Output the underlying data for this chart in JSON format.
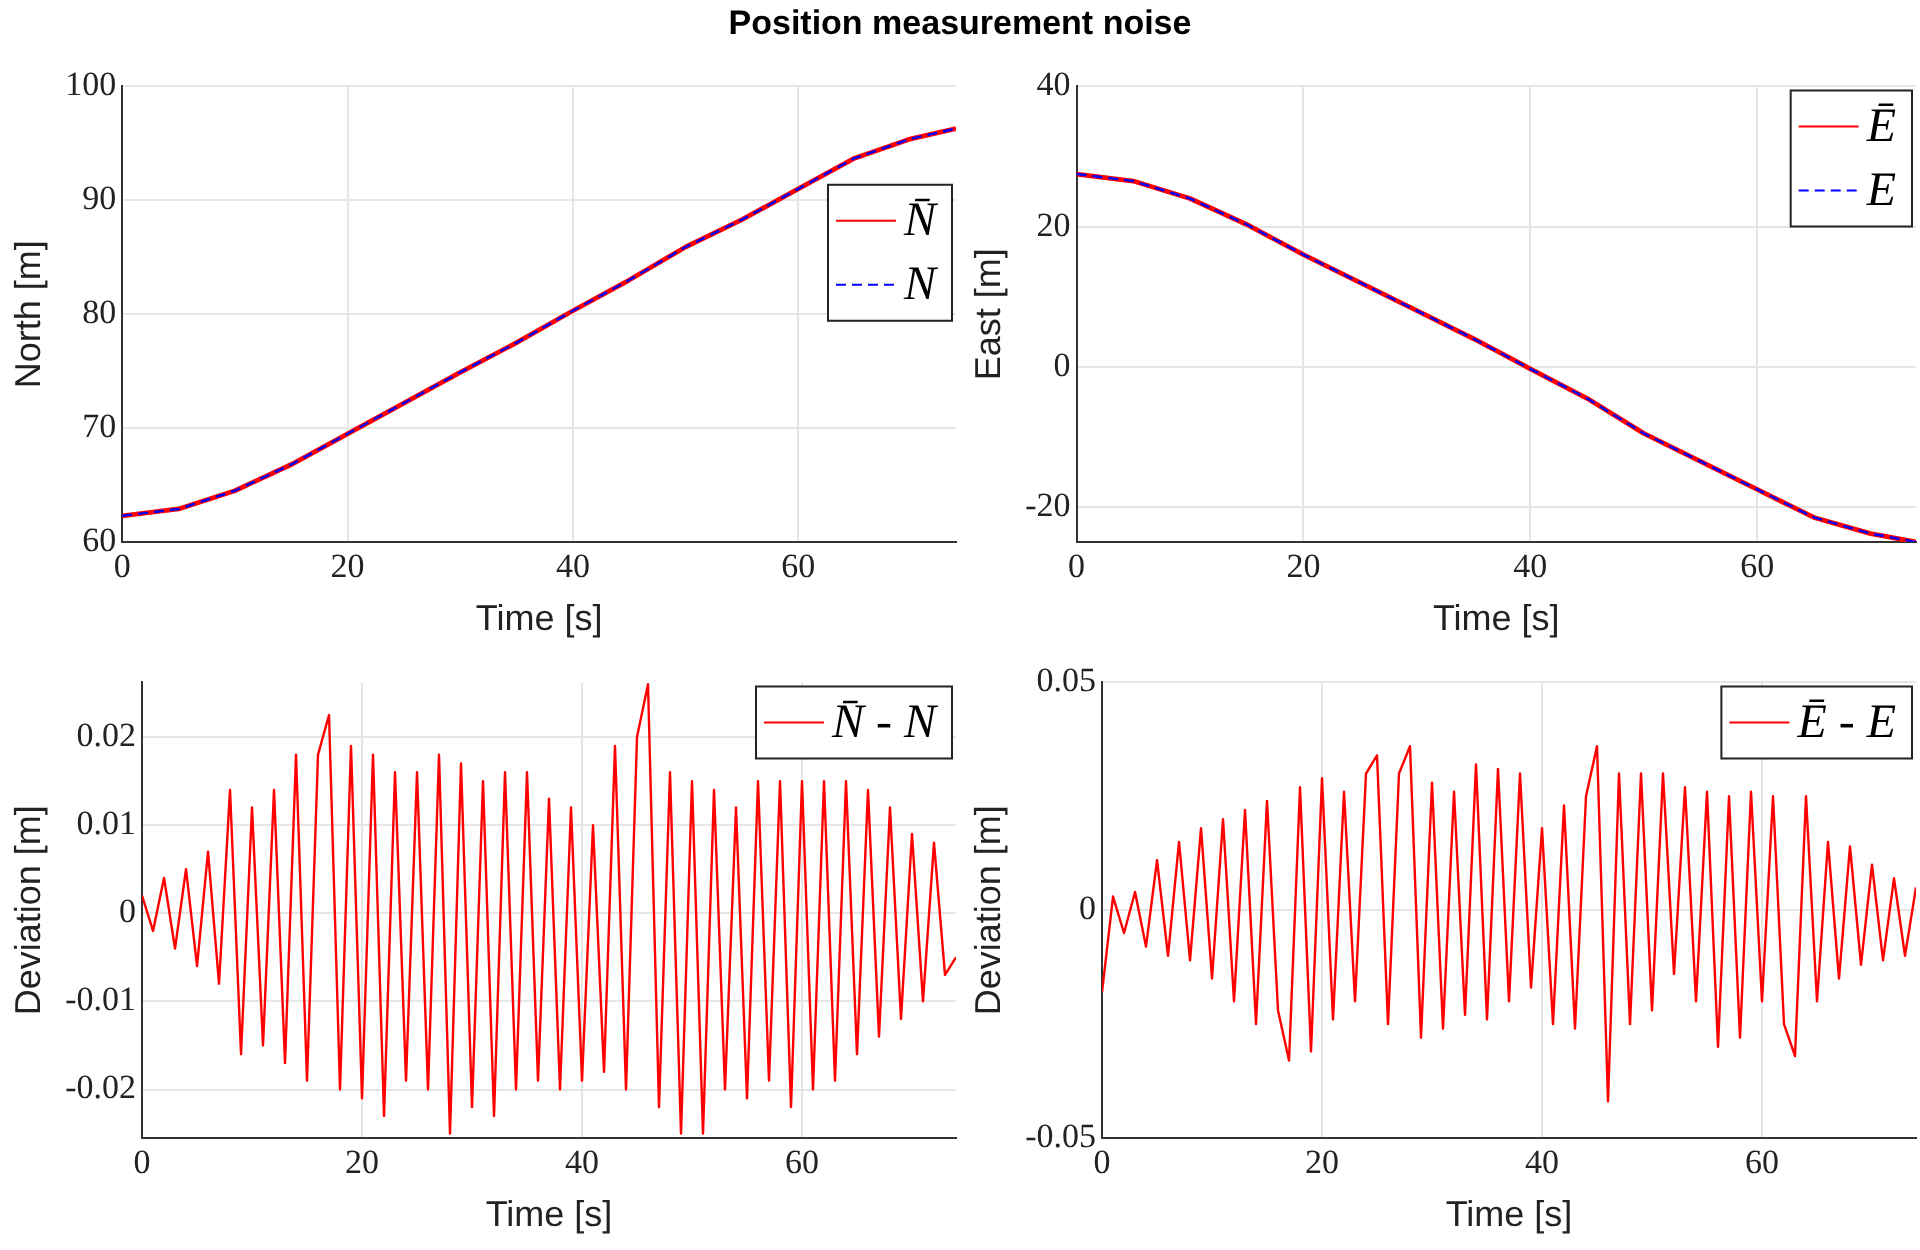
{
  "chart_data": [
    {
      "type": "line",
      "title": "Position measurement noise",
      "xlabel": "Time [s]",
      "ylabel": "North [m]",
      "xlim": [
        0,
        74
      ],
      "xticks": [
        0,
        20,
        40,
        60
      ],
      "ylim": [
        60,
        100
      ],
      "yticks": [
        60,
        70,
        80,
        90,
        100
      ],
      "grid": true,
      "legend": "top right",
      "x": [
        0,
        5,
        10,
        15,
        20,
        25,
        30,
        35,
        40,
        45,
        50,
        55,
        60,
        65,
        70,
        74
      ],
      "series": [
        {
          "name": "N̄",
          "color": "#ff0000",
          "line_style": "solid",
          "values": [
            62.3,
            62.9,
            64.5,
            66.8,
            69.5,
            72.2,
            74.9,
            77.5,
            80.3,
            83.0,
            85.9,
            88.3,
            91.0,
            93.7,
            95.4,
            96.3
          ]
        },
        {
          "name": "N",
          "color": "#0000ff",
          "line_style": "dashed",
          "values": [
            62.3,
            62.9,
            64.5,
            66.8,
            69.5,
            72.2,
            74.9,
            77.5,
            80.3,
            83.0,
            85.9,
            88.3,
            91.0,
            93.7,
            95.4,
            96.3
          ]
        }
      ]
    },
    {
      "type": "line",
      "xlabel": "Time [s]",
      "ylabel": "East [m]",
      "xlim": [
        0,
        74
      ],
      "xticks": [
        0,
        20,
        40,
        60
      ],
      "ylim": [
        -25,
        40
      ],
      "yticks": [
        -20,
        0,
        20,
        40
      ],
      "grid": true,
      "legend": "top right",
      "x": [
        0,
        5,
        10,
        15,
        20,
        25,
        30,
        35,
        40,
        45,
        50,
        55,
        60,
        65,
        70,
        74
      ],
      "series": [
        {
          "name": "Ē",
          "color": "#ff0000",
          "line_style": "solid",
          "values": [
            27.5,
            26.5,
            24.0,
            20.3,
            16.0,
            12.0,
            8.0,
            4.0,
            -0.3,
            -4.5,
            -9.5,
            -13.5,
            -17.5,
            -21.5,
            -23.8,
            -25.0
          ]
        },
        {
          "name": "E",
          "color": "#0000ff",
          "line_style": "dashed",
          "values": [
            27.5,
            26.5,
            24.0,
            20.3,
            16.0,
            12.0,
            8.0,
            4.0,
            -0.3,
            -4.5,
            -9.5,
            -13.5,
            -17.5,
            -21.5,
            -23.8,
            -25.0
          ]
        }
      ]
    },
    {
      "type": "line",
      "xlabel": "Time [s]",
      "ylabel": "Deviation [m]",
      "xlim": [
        0,
        74
      ],
      "xticks": [
        0,
        20,
        40,
        60
      ],
      "ylim": [
        -0.0255,
        0.0262
      ],
      "yticks": [
        -0.02,
        -0.01,
        0,
        0.01,
        0.02
      ],
      "grid": true,
      "legend": "top right",
      "x": [
        0,
        1,
        2,
        3,
        4,
        5,
        6,
        7,
        8,
        9,
        10,
        11,
        12,
        13,
        14,
        15,
        16,
        17,
        18,
        19,
        20,
        21,
        22,
        23,
        24,
        25,
        26,
        27,
        28,
        29,
        30,
        31,
        32,
        33,
        34,
        35,
        36,
        37,
        38,
        39,
        40,
        41,
        42,
        43,
        44,
        45,
        46,
        47,
        48,
        49,
        50,
        51,
        52,
        53,
        54,
        55,
        56,
        57,
        58,
        59,
        60,
        61,
        62,
        63,
        64,
        65,
        66,
        67,
        68,
        69,
        70,
        71,
        72,
        73,
        74
      ],
      "series": [
        {
          "name": "N̄ - N",
          "color": "#ff0000",
          "line_style": "solid",
          "values": [
            0.002,
            -0.002,
            0.004,
            -0.004,
            0.005,
            -0.006,
            0.007,
            -0.008,
            0.014,
            -0.016,
            0.012,
            -0.015,
            0.014,
            -0.017,
            0.018,
            -0.019,
            0.018,
            0.0225,
            -0.02,
            0.019,
            -0.021,
            0.018,
            -0.023,
            0.016,
            -0.019,
            0.016,
            -0.02,
            0.018,
            -0.025,
            0.017,
            -0.022,
            0.015,
            -0.023,
            0.016,
            -0.02,
            0.016,
            -0.019,
            0.013,
            -0.02,
            0.012,
            -0.019,
            0.01,
            -0.018,
            0.019,
            -0.02,
            0.02,
            0.026,
            -0.022,
            0.016,
            -0.025,
            0.015,
            -0.025,
            0.014,
            -0.02,
            0.012,
            -0.021,
            0.015,
            -0.019,
            0.015,
            -0.022,
            0.015,
            -0.02,
            0.015,
            -0.019,
            0.015,
            -0.016,
            0.014,
            -0.014,
            0.012,
            -0.012,
            0.009,
            -0.01,
            0.008,
            -0.007,
            -0.005
          ]
        }
      ]
    },
    {
      "type": "line",
      "xlabel": "Time [s]",
      "ylabel": "Deviation [m]",
      "xlim": [
        0,
        74
      ],
      "xticks": [
        0,
        20,
        40,
        60
      ],
      "ylim": [
        -0.05,
        0.05
      ],
      "yticks": [
        -0.05,
        0,
        0.05
      ],
      "grid": true,
      "legend": "top right",
      "x": [
        0,
        1,
        2,
        3,
        4,
        5,
        6,
        7,
        8,
        9,
        10,
        11,
        12,
        13,
        14,
        15,
        16,
        17,
        18,
        19,
        20,
        21,
        22,
        23,
        24,
        25,
        26,
        27,
        28,
        29,
        30,
        31,
        32,
        33,
        34,
        35,
        36,
        37,
        38,
        39,
        40,
        41,
        42,
        43,
        44,
        45,
        46,
        47,
        48,
        49,
        50,
        51,
        52,
        53,
        54,
        55,
        56,
        57,
        58,
        59,
        60,
        61,
        62,
        63,
        64,
        65,
        66,
        67,
        68,
        69,
        70,
        71,
        72,
        73,
        74
      ],
      "series": [
        {
          "name": "Ē - E",
          "color": "#ff0000",
          "line_style": "solid",
          "values": [
            -0.018,
            0.003,
            -0.005,
            0.004,
            -0.008,
            0.011,
            -0.01,
            0.015,
            -0.011,
            0.018,
            -0.015,
            0.02,
            -0.02,
            0.022,
            -0.025,
            0.024,
            -0.022,
            -0.033,
            0.027,
            -0.031,
            0.029,
            -0.024,
            0.026,
            -0.02,
            0.03,
            0.034,
            -0.025,
            0.03,
            0.036,
            -0.028,
            0.028,
            -0.026,
            0.026,
            -0.023,
            0.032,
            -0.024,
            0.031,
            -0.02,
            0.03,
            -0.017,
            0.018,
            -0.025,
            0.023,
            -0.026,
            0.025,
            0.036,
            -0.042,
            0.03,
            -0.025,
            0.03,
            -0.022,
            0.03,
            -0.014,
            0.027,
            -0.02,
            0.026,
            -0.03,
            0.025,
            -0.028,
            0.026,
            -0.02,
            0.025,
            -0.025,
            -0.032,
            0.025,
            -0.02,
            0.015,
            -0.015,
            0.014,
            -0.012,
            0.01,
            -0.011,
            0.007,
            -0.01,
            0.005
          ]
        }
      ]
    }
  ]
}
